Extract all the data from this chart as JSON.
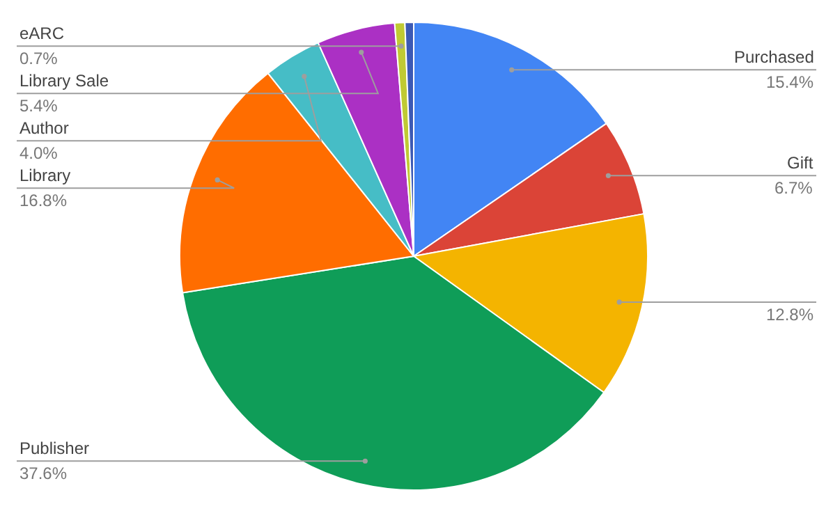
{
  "chart_data": {
    "type": "pie",
    "categories": [
      "Purchased",
      "Gift",
      null,
      "Publisher",
      "Library",
      "Author",
      "Library Sale",
      "eARC",
      null
    ],
    "values": [
      15.4,
      6.7,
      12.8,
      37.6,
      16.8,
      4.0,
      5.4,
      0.7,
      0.6
    ],
    "value_labels": [
      "15.4%",
      "6.7%",
      "12.8%",
      "37.6%",
      "16.8%",
      "4.0%",
      "5.4%",
      "0.7%",
      null
    ],
    "colors": [
      "#4285f4",
      "#db4437",
      "#f4b400",
      "#0f9d58",
      "#ff6d00",
      "#46bdc6",
      "#ab30c4",
      "#c0ca33",
      "#3c5ab4"
    ],
    "legend": false
  }
}
